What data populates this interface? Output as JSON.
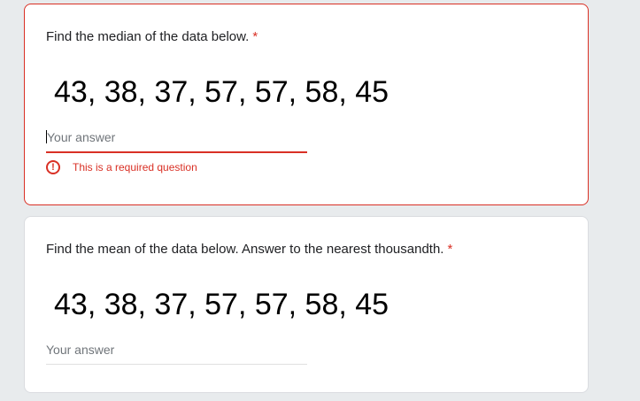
{
  "questions": [
    {
      "text": "Find the median of the data below.",
      "required_mark": "*",
      "data": "43, 38, 37, 57, 57, 58, 45",
      "placeholder": "Your answer",
      "value": "",
      "error": "This is a required question",
      "error_icon": "exclamation-circle-icon"
    },
    {
      "text": "Find the mean of the data below. Answer to the nearest thousandth.",
      "required_mark": "*",
      "data": "43, 38, 37, 57, 57, 58, 45",
      "placeholder": "Your answer",
      "value": ""
    }
  ],
  "colors": {
    "error": "#d93025",
    "background": "#e8ebed"
  }
}
